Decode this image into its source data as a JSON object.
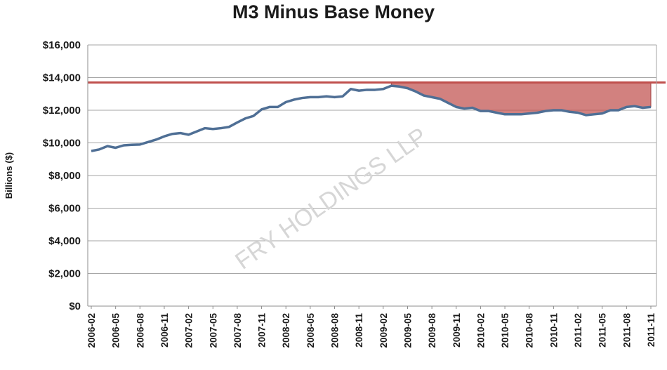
{
  "chart_data": {
    "type": "line",
    "title": "M3 Minus Base Money",
    "ylabel": "Billions ($)",
    "xlabel": "",
    "ylim": [
      0,
      16000
    ],
    "y_ticks": [
      "$0",
      "$2,000",
      "$4,000",
      "$6,000",
      "$8,000",
      "$10,000",
      "$12,000",
      "$14,000",
      "$16,000"
    ],
    "y_tick_values": [
      0,
      2000,
      4000,
      6000,
      8000,
      10000,
      12000,
      14000,
      16000
    ],
    "x_tick_labels": [
      "2006-02",
      "2006-05",
      "2006-08",
      "2006-11",
      "2007-02",
      "2007-05",
      "2007-08",
      "2007-11",
      "2008-02",
      "2008-05",
      "2008-08",
      "2008-11",
      "2009-02",
      "2009-05",
      "2009-08",
      "2009-11",
      "2010-02",
      "2010-05",
      "2010-08",
      "2010-11",
      "2011-02",
      "2011-05",
      "2011-08",
      "2011-11"
    ],
    "grid": true,
    "watermark": "FRY HOLDINGS LLP",
    "reference_line": {
      "value": 13700,
      "color": "#c0504d"
    },
    "shaded_gap": {
      "start": "2009-03",
      "end": "2011-11",
      "color": "#c0504d"
    },
    "series": [
      {
        "color": "#4f6f95",
        "x": [
          "2006-02",
          "2006-03",
          "2006-04",
          "2006-05",
          "2006-06",
          "2006-07",
          "2006-08",
          "2006-09",
          "2006-10",
          "2006-11",
          "2006-12",
          "2007-01",
          "2007-02",
          "2007-03",
          "2007-04",
          "2007-05",
          "2007-06",
          "2007-07",
          "2007-08",
          "2007-09",
          "2007-10",
          "2007-11",
          "2007-12",
          "2008-01",
          "2008-02",
          "2008-03",
          "2008-04",
          "2008-05",
          "2008-06",
          "2008-07",
          "2008-08",
          "2008-09",
          "2008-10",
          "2008-11",
          "2008-12",
          "2009-01",
          "2009-02",
          "2009-03",
          "2009-04",
          "2009-05",
          "2009-06",
          "2009-07",
          "2009-08",
          "2009-09",
          "2009-10",
          "2009-11",
          "2009-12",
          "2010-01",
          "2010-02",
          "2010-03",
          "2010-04",
          "2010-05",
          "2010-06",
          "2010-07",
          "2010-08",
          "2010-09",
          "2010-10",
          "2010-11",
          "2010-12",
          "2011-01",
          "2011-02",
          "2011-03",
          "2011-04",
          "2011-05",
          "2011-06",
          "2011-07",
          "2011-08",
          "2011-09",
          "2011-10",
          "2011-11"
        ],
        "values": [
          9500,
          9600,
          9800,
          9700,
          9850,
          9880,
          9900,
          10050,
          10200,
          10400,
          10550,
          10600,
          10500,
          10700,
          10900,
          10850,
          10900,
          10980,
          11250,
          11500,
          11650,
          12050,
          12200,
          12200,
          12500,
          12650,
          12750,
          12800,
          12800,
          12850,
          12800,
          12850,
          13300,
          13200,
          13250,
          13250,
          13300,
          13500,
          13450,
          13350,
          13150,
          12900,
          12800,
          12700,
          12450,
          12200,
          12100,
          12150,
          11950,
          11950,
          11850,
          11750,
          11750,
          11750,
          11800,
          11850,
          11950,
          12000,
          12000,
          11900,
          11850,
          11700,
          11750,
          11800,
          12000,
          12000,
          12200,
          12250,
          12150,
          12200
        ]
      }
    ]
  }
}
